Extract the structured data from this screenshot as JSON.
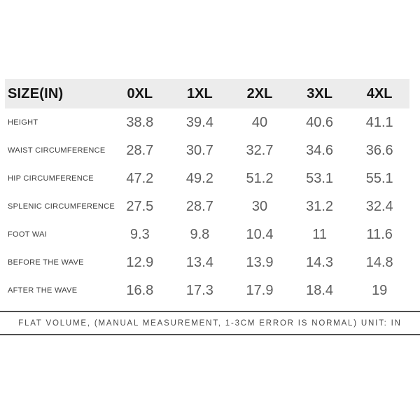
{
  "chart_data": {
    "type": "table",
    "title": "SIZE(IN)",
    "header": {
      "label": "SIZE(IN)",
      "sizes": [
        "0XL",
        "1XL",
        "2XL",
        "3XL",
        "4XL"
      ]
    },
    "rows": [
      {
        "label": "HEIGHT",
        "values": [
          "38.8",
          "39.4",
          "40",
          "40.6",
          "41.1"
        ]
      },
      {
        "label": "WAIST CIRCUMFERENCE",
        "values": [
          "28.7",
          "30.7",
          "32.7",
          "34.6",
          "36.6"
        ]
      },
      {
        "label": "HIP CIRCUMFERENCE",
        "values": [
          "47.2",
          "49.2",
          "51.2",
          "53.1",
          "55.1"
        ]
      },
      {
        "label": "SPLENIC CIRCUMFERENCE",
        "values": [
          "27.5",
          "28.7",
          "30",
          "31.2",
          "32.4"
        ]
      },
      {
        "label": "FOOT WAI",
        "values": [
          "9.3",
          "9.8",
          "10.4",
          "11",
          "11.6"
        ]
      },
      {
        "label": "BEFORE THE WAVE",
        "values": [
          "12.9",
          "13.4",
          "13.9",
          "14.3",
          "14.8"
        ]
      },
      {
        "label": "AFTER THE WAVE",
        "values": [
          "16.8",
          "17.3",
          "17.9",
          "18.4",
          "19"
        ]
      }
    ],
    "footnote": "FLAT VOLUME, (MANUAL MEASUREMENT, 1-3CM ERROR IS NORMAL) UNIT: IN",
    "unit": "IN",
    "layout": {
      "grid": "off",
      "header_background": true
    }
  },
  "colors": {
    "header_bg": "#ececec",
    "header_text": "#141414",
    "row_label_text": "#3d3d3d",
    "value_text": "#5f5f5f",
    "footnote_text": "#484848",
    "rule": "#4f4f4f",
    "background": "#ffffff"
  }
}
